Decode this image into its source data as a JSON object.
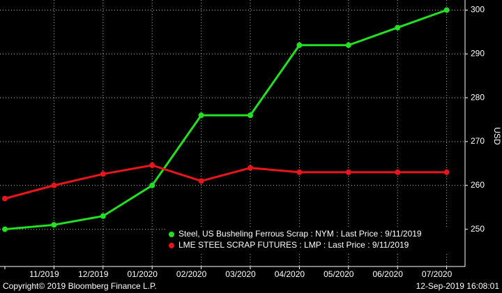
{
  "chart_data": {
    "type": "line",
    "categories": [
      null,
      "11/2019",
      "12/2019",
      "01/2020",
      "02/2020",
      "03/2020",
      "04/2020",
      "05/2020",
      "06/2020",
      "07/2020"
    ],
    "series": [
      {
        "name": "Steel, US Busheling Ferrous Scrap : NYM : Last Price : 9/11/2019",
        "color": "#22e022",
        "values": [
          250,
          251,
          253,
          260,
          276,
          276,
          292,
          292,
          296,
          300
        ]
      },
      {
        "name": "LME STEEL SCRAP FUTURES : LMP : Last Price : 9/11/2019",
        "color": "#e8161b",
        "values": [
          257,
          260,
          262.6,
          264.6,
          261,
          264,
          263,
          263,
          263,
          263
        ]
      }
    ],
    "y_label": "USD",
    "ylim": [
      241.5,
      302.3
    ],
    "yticks": [
      250,
      260,
      270,
      280,
      290,
      300
    ],
    "grid": true,
    "annotations": [
      "Copyright© 2019 Bloomberg Finance L.P.",
      "12-Sep-2019 16:08:01"
    ]
  }
}
